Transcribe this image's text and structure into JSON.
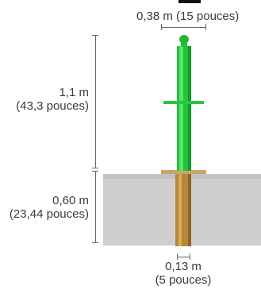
{
  "top_width": {
    "value": "0,38 m",
    "imperial": "(15 pouces)"
  },
  "above_ground_height": {
    "value": "1,1 m",
    "imperial": "(43,3 pouces)"
  },
  "below_ground_depth": {
    "value": "0,60 m",
    "imperial": "(23,44 pouces)"
  },
  "sleeve_diameter": {
    "value": "0,13 m",
    "imperial": "(5 pouces)"
  },
  "colors": {
    "post": "#22c43a",
    "sleeve": "#b8873c",
    "ground": "#cfcfcf"
  }
}
